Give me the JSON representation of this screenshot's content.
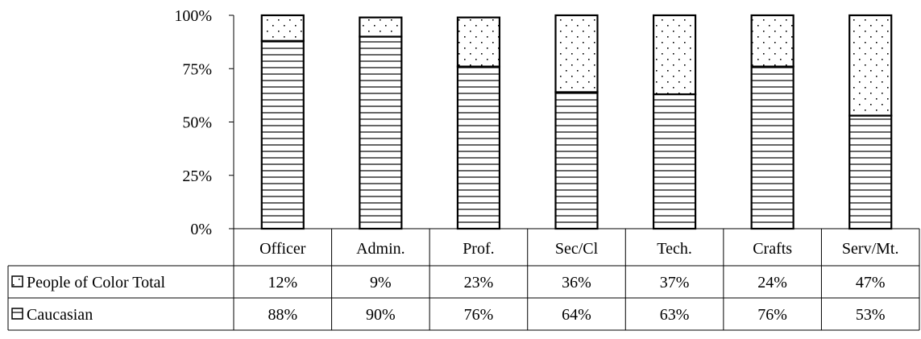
{
  "chart_data": {
    "type": "bar",
    "stacked": true,
    "percent_stacked": true,
    "categories": [
      "Officer",
      "Admin.",
      "Prof.",
      "Sec/Cl",
      "Tech.",
      "Crafts",
      "Serv/Mt."
    ],
    "series": [
      {
        "name": "Caucasian",
        "values": [
          88,
          90,
          76,
          64,
          63,
          76,
          53
        ],
        "labels": [
          "88%",
          "90%",
          "76%",
          "64%",
          "63%",
          "76%",
          "53%"
        ],
        "pattern": "horizontal-lines"
      },
      {
        "name": "People of Color Total",
        "values": [
          12,
          9,
          23,
          36,
          37,
          24,
          47
        ],
        "labels": [
          "12%",
          "9%",
          "23%",
          "36%",
          "37%",
          "24%",
          "47%"
        ],
        "pattern": "dots"
      }
    ],
    "y_ticks": [
      "0%",
      "25%",
      "50%",
      "75%",
      "100%"
    ],
    "ylim": [
      0,
      100
    ],
    "grid": false,
    "legend": "data-table-below",
    "colors": {
      "stroke": "#000000",
      "fill": "#ffffff"
    }
  }
}
